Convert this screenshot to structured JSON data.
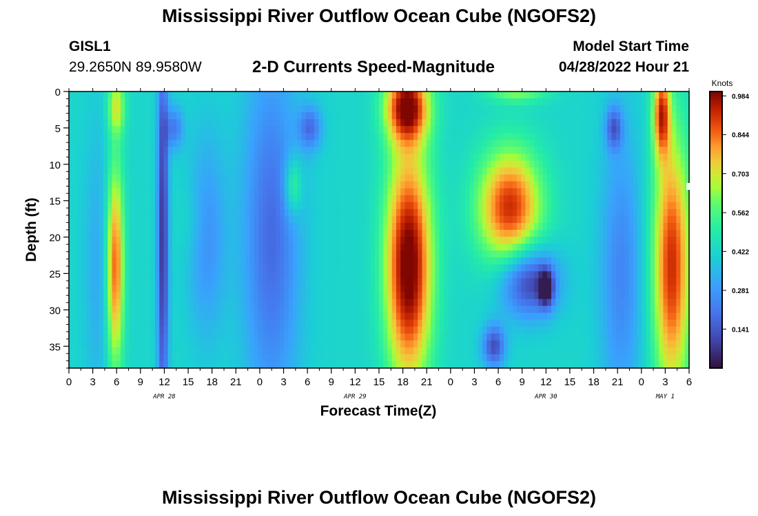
{
  "header": {
    "title": "Mississippi River Outflow Ocean Cube (NGOFS2)",
    "station": "GISL1",
    "coords": "29.2650N  89.9580W",
    "subtitle": "2-D Currents Speed-Magnitude",
    "model_start_label": "Model Start Time",
    "model_start_value": "04/28/2022 Hour 21"
  },
  "footer": {
    "title": "Mississippi River Outflow Ocean Cube (NGOFS2)"
  },
  "chart_data": {
    "type": "heatmap",
    "xlabel": "Forecast Time(Z)",
    "ylabel": "Depth (ft)",
    "x_tick_labels": [
      "0",
      "3",
      "6",
      "9",
      "12",
      "15",
      "18",
      "21",
      "0",
      "3",
      "6",
      "9",
      "12",
      "15",
      "18",
      "21",
      "0",
      "3",
      "6",
      "9",
      "12",
      "15",
      "18",
      "21",
      "0",
      "3",
      "6"
    ],
    "date_labels": [
      {
        "label": "APR 28",
        "tick_index": 4
      },
      {
        "label": "APR 29",
        "tick_index": 12
      },
      {
        "label": "APR 30",
        "tick_index": 20
      },
      {
        "label": "MAY 1",
        "tick_index": 25
      }
    ],
    "y_ticks": [
      0,
      5,
      10,
      15,
      20,
      25,
      30,
      35
    ],
    "ylim": [
      0,
      38
    ],
    "y_inverted": true,
    "colorbar": {
      "label": "Knots",
      "tick_labels": [
        "0.984",
        "0.844",
        "0.703",
        "0.562",
        "0.422",
        "0.281",
        "0.141"
      ],
      "tick_values": [
        0.984,
        0.844,
        0.703,
        0.562,
        0.422,
        0.281,
        0.141
      ],
      "range": [
        0,
        1.0
      ]
    },
    "grid": false
  }
}
